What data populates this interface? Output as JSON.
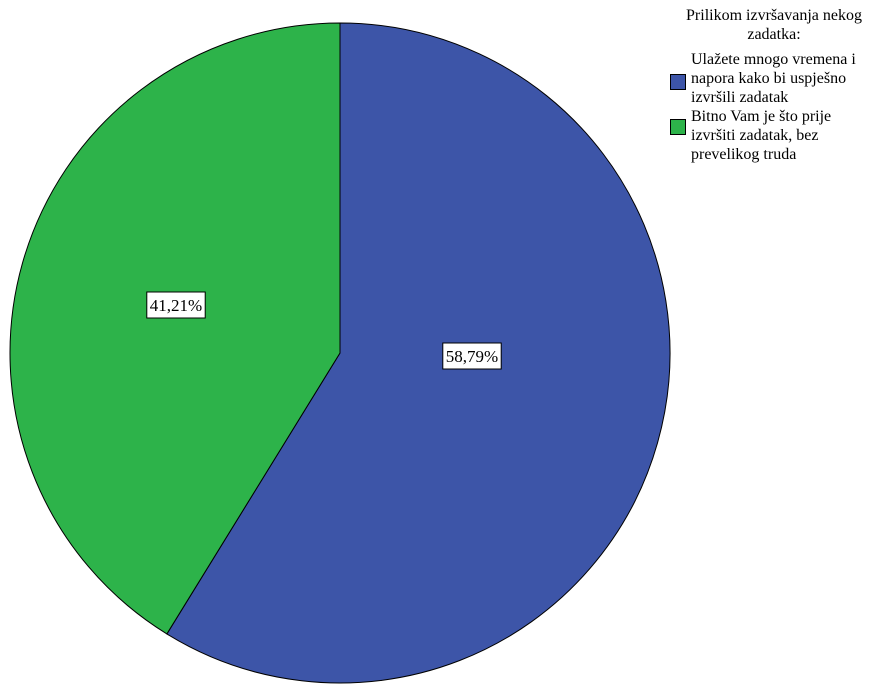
{
  "chart_data": {
    "type": "pie",
    "start_angle_deg": 0,
    "direction": "clockwise",
    "legend": {
      "title": "Prilikom izvršavanja nekog zadatka:",
      "position": "top-right"
    },
    "slices": [
      {
        "label": "Ulažete mnogo vremena i napora kako bi uspješno izvršili zadatak",
        "value": 58.79,
        "display": "58,79%",
        "color": "#3d55a8"
      },
      {
        "label": "Bitno Vam je što prije izvršiti zadatak, bez prevelikog truda",
        "value": 41.21,
        "display": "41,21%",
        "color": "#2db34a"
      }
    ]
  }
}
